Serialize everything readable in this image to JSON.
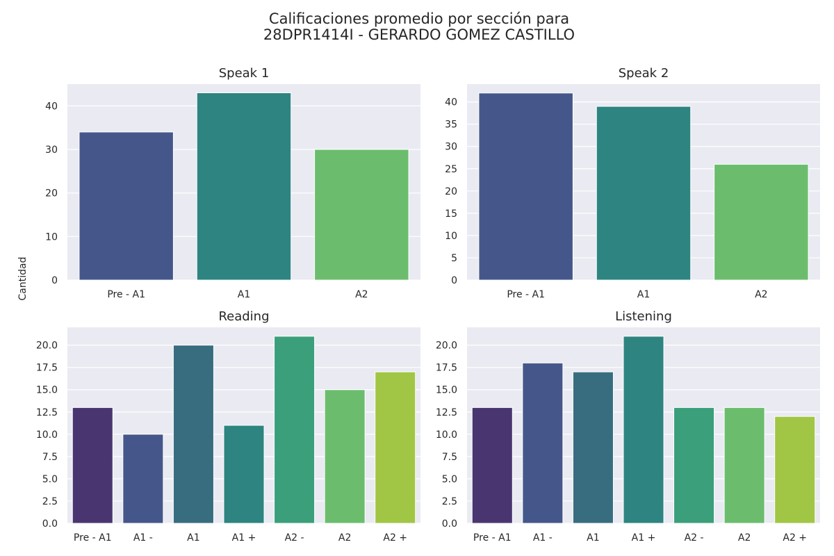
{
  "figure": {
    "title_line1": "Calificaciones promedio por sección para",
    "title_line2": "28DPR1414I - GERARDO GOMEZ CASTILLO",
    "ylabel": "Cantidad"
  },
  "style": {
    "background": "#eaeaf2",
    "grid": "#ffffff",
    "palette_3": [
      "#45578a",
      "#2e8480",
      "#6bbd6d"
    ],
    "palette_7": [
      "#493671",
      "#45578a",
      "#386d80",
      "#2e8480",
      "#3b9f7b",
      "#6bbd6d",
      "#a1c645"
    ]
  },
  "chart_data": [
    {
      "type": "bar",
      "title": "Speak 1",
      "categories": [
        "Pre - A1",
        "A1",
        "A2"
      ],
      "values": [
        34,
        43,
        30
      ],
      "ylim": [
        0,
        45
      ],
      "yticks": [
        0,
        10,
        20,
        30,
        40
      ],
      "grid": true
    },
    {
      "type": "bar",
      "title": "Speak 2",
      "categories": [
        "Pre - A1",
        "A1",
        "A2"
      ],
      "values": [
        42,
        39,
        26
      ],
      "ylim": [
        0,
        44
      ],
      "yticks": [
        0,
        5,
        10,
        15,
        20,
        25,
        30,
        35,
        40
      ],
      "grid": true
    },
    {
      "type": "bar",
      "title": "Reading",
      "categories": [
        "Pre - A1",
        "A1 -",
        "A1",
        "A1 +",
        "A2 -",
        "A2",
        "A2 +"
      ],
      "values": [
        13,
        10,
        20,
        11,
        21,
        15,
        17
      ],
      "ylim": [
        0,
        22
      ],
      "yticks": [
        "0.0",
        "2.5",
        "5.0",
        "7.5",
        "10.0",
        "12.5",
        "15.0",
        "17.5",
        "20.0"
      ],
      "grid": true
    },
    {
      "type": "bar",
      "title": "Listening",
      "categories": [
        "Pre - A1",
        "A1 -",
        "A1",
        "A1 +",
        "A2 -",
        "A2",
        "A2 +"
      ],
      "values": [
        13,
        18,
        17,
        21,
        13,
        13,
        12
      ],
      "ylim": [
        0,
        22
      ],
      "yticks": [
        "0.0",
        "2.5",
        "5.0",
        "7.5",
        "10.0",
        "12.5",
        "15.0",
        "17.5",
        "20.0"
      ],
      "grid": true
    }
  ]
}
